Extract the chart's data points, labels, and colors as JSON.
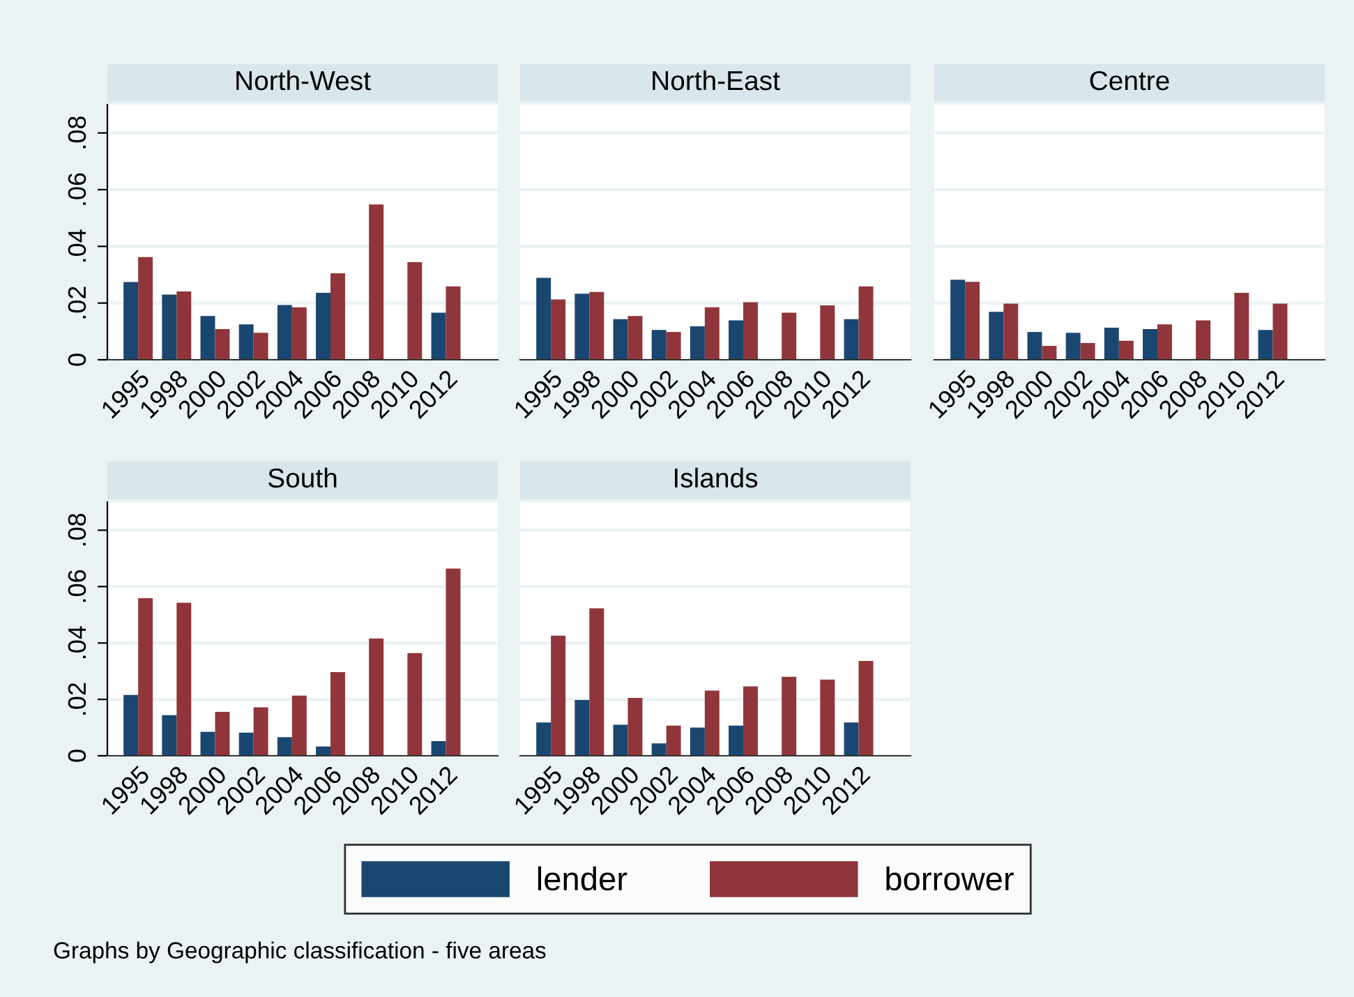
{
  "chart_data": [
    {
      "type": "bar",
      "title": "North-West",
      "categories": [
        "1995",
        "1998",
        "2000",
        "2002",
        "2004",
        "2006",
        "2008",
        "2010",
        "2012"
      ],
      "ylim": [
        0,
        0.09
      ],
      "yticks": [
        {
          "value": 0,
          "label": "0"
        },
        {
          "value": 0.02,
          "label": ".02"
        },
        {
          "value": 0.04,
          "label": ".04"
        },
        {
          "value": 0.06,
          "label": ".06"
        },
        {
          "value": 0.08,
          "label": ".08"
        }
      ],
      "grid": "y",
      "legend": "bottom",
      "annotations": [
        "Graphs by Geographic classification - five areas"
      ],
      "series": [
        {
          "name": "lender",
          "color": "#1a476f",
          "values": [
            0.0274,
            0.023,
            0.0154,
            0.0125,
            0.0193,
            0.0236,
            null,
            null,
            0.0166
          ]
        },
        {
          "name": "borrower",
          "color": "#90353b",
          "values": [
            0.0362,
            0.0241,
            0.0108,
            0.0095,
            0.0185,
            0.0305,
            0.0548,
            0.0344,
            0.0259
          ]
        }
      ]
    },
    {
      "type": "bar",
      "title": "North-East",
      "categories": [
        "1995",
        "1998",
        "2000",
        "2002",
        "2004",
        "2006",
        "2008",
        "2010",
        "2012"
      ],
      "ylim": [
        0,
        0.09
      ],
      "yticks": [
        0,
        0.02,
        0.04,
        0.06,
        0.08
      ],
      "grid": "y",
      "tick_labels": "x",
      "series": [
        {
          "color": "#1a476f",
          "values": [
            0.0289,
            0.0233,
            0.0143,
            0.0105,
            0.0118,
            0.0139,
            null,
            null,
            0.0143
          ]
        },
        {
          "color": "#90353b",
          "values": [
            0.0213,
            0.0239,
            0.0154,
            0.0098,
            0.0185,
            0.0203,
            0.0166,
            0.0192,
            0.0259
          ]
        }
      ]
    },
    {
      "type": "bar",
      "title": "Centre",
      "categories": [
        "1995",
        "1998",
        "2000",
        "2002",
        "2004",
        "2006",
        "2008",
        "2010",
        "2012"
      ],
      "ylim": [
        0,
        0.09
      ],
      "yticks": [
        0,
        0.02,
        0.04,
        0.06,
        0.08
      ],
      "grid": "y",
      "tick_labels": "x",
      "series": [
        {
          "color": "#1a476f",
          "values": [
            0.0282,
            0.0169,
            0.0098,
            0.0095,
            0.0113,
            0.0108,
            null,
            null,
            0.0105
          ]
        },
        {
          "color": "#90353b",
          "values": [
            0.0275,
            0.0198,
            0.0049,
            0.0059,
            0.0067,
            0.0125,
            0.0139,
            0.0236,
            0.0198
          ]
        }
      ]
    },
    {
      "type": "bar",
      "title": "South",
      "categories": [
        "1995",
        "1998",
        "2000",
        "2002",
        "2004",
        "2006",
        "2008",
        "2010",
        "2012"
      ],
      "ylim": [
        0,
        0.09
      ],
      "yticks": [
        {
          "value": 0,
          "label": "0"
        },
        {
          "value": 0.02,
          "label": ".02"
        },
        {
          "value": 0.04,
          "label": ".04"
        },
        {
          "value": 0.06,
          "label": ".06"
        },
        {
          "value": 0.08,
          "label": ".08"
        }
      ],
      "grid": "y",
      "series": [
        {
          "color": "#1a476f",
          "values": [
            0.0216,
            0.0144,
            0.0085,
            0.0082,
            0.0066,
            0.0033,
            null,
            null,
            0.0052
          ]
        },
        {
          "color": "#90353b",
          "values": [
            0.0559,
            0.0543,
            0.0156,
            0.0172,
            0.0213,
            0.0297,
            0.0416,
            0.0364,
            0.0664
          ]
        }
      ]
    },
    {
      "type": "bar",
      "title": "Islands",
      "categories": [
        "1995",
        "1998",
        "2000",
        "2002",
        "2004",
        "2006",
        "2008",
        "2010",
        "2012"
      ],
      "ylim": [
        0,
        0.09
      ],
      "yticks": [
        0,
        0.02,
        0.04,
        0.06,
        0.08
      ],
      "grid": "y",
      "tick_labels": "x",
      "series": [
        {
          "color": "#1a476f",
          "values": [
            0.0118,
            0.0198,
            0.011,
            0.0044,
            0.01,
            0.0107,
            null,
            null,
            0.0118
          ]
        },
        {
          "color": "#90353b",
          "values": [
            0.0426,
            0.0523,
            0.0205,
            0.0107,
            0.0231,
            0.0246,
            0.028,
            0.027,
            0.0336
          ]
        }
      ]
    }
  ]
}
